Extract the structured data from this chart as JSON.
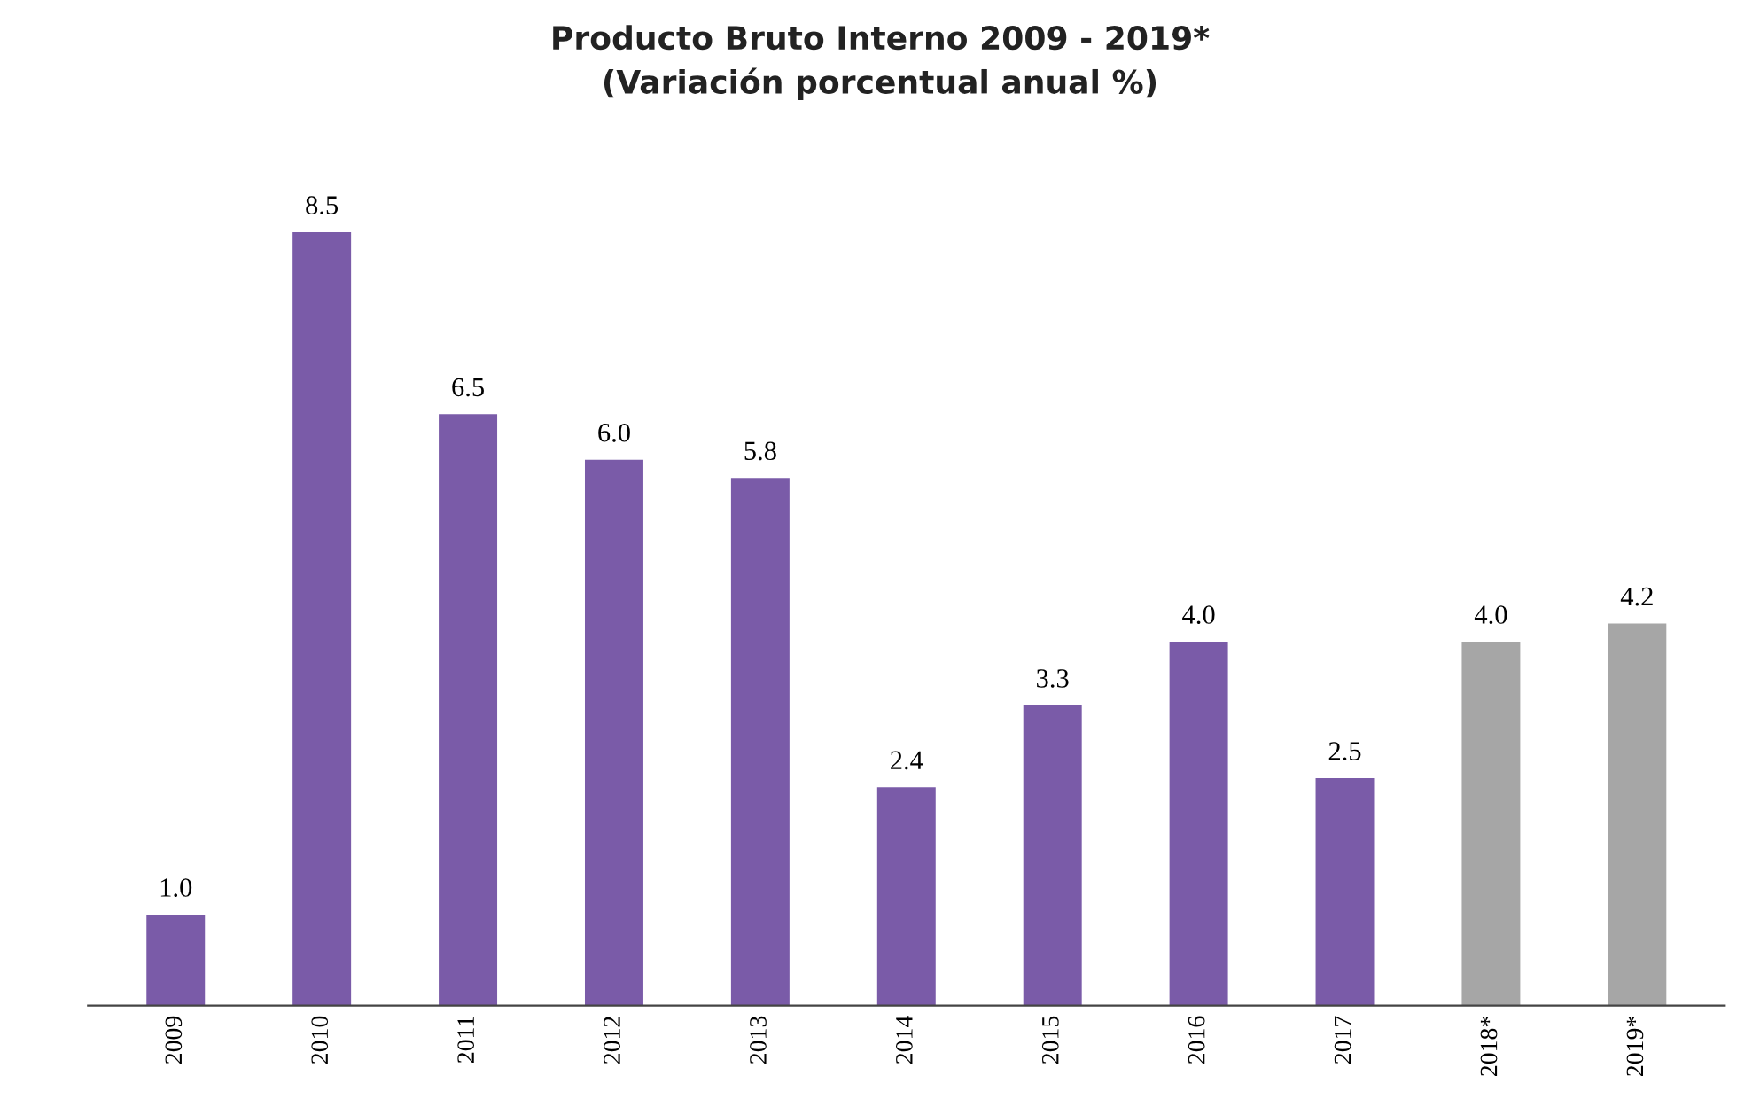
{
  "chart_data": {
    "type": "bar",
    "title": "Producto Bruto Interno 2009 - 2019*",
    "subtitle": "(Variación porcentual anual %)",
    "categories": [
      "2009",
      "2010",
      "2011",
      "2012",
      "2013",
      "2014",
      "2015",
      "2016",
      "2017",
      "2018*",
      "2019*"
    ],
    "values": [
      1.0,
      8.5,
      6.5,
      6.0,
      5.8,
      2.4,
      3.3,
      4.0,
      2.5,
      4.0,
      4.2
    ],
    "value_labels": [
      "1.0",
      "8.5",
      "6.5",
      "6.0",
      "5.8",
      "2.4",
      "3.3",
      "4.0",
      "2.5",
      "4.0",
      "4.2"
    ],
    "colors": [
      "#7a5ba8",
      "#7a5ba8",
      "#7a5ba8",
      "#7a5ba8",
      "#7a5ba8",
      "#7a5ba8",
      "#7a5ba8",
      "#7a5ba8",
      "#7a5ba8",
      "#a6a6a6",
      "#a6a6a6"
    ],
    "grid": false,
    "legend": false
  }
}
